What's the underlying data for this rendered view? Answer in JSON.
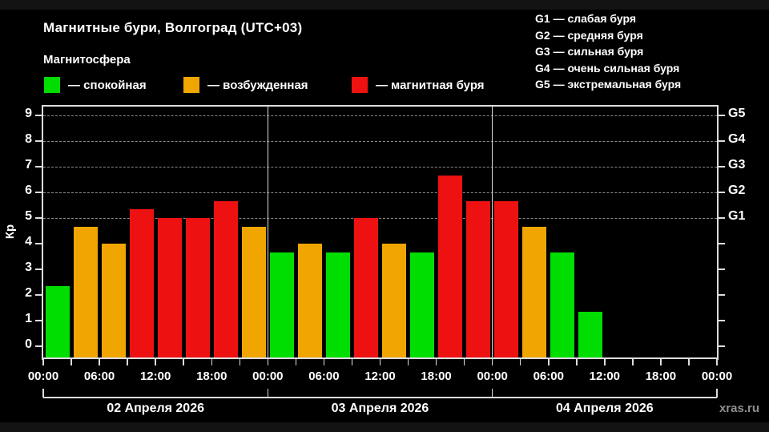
{
  "header": {
    "title": "Магнитные бури, Волгоград (UTC+03)",
    "subtitle": "Магнитосфера",
    "legend_items": [
      {
        "name": "quiet",
        "label": "— спокойная",
        "color": "#00dd00"
      },
      {
        "name": "excited",
        "label": "— возбужденная",
        "color": "#f0a500"
      },
      {
        "name": "storm",
        "label": "— магнитная буря",
        "color": "#ee1111"
      }
    ],
    "g_legend": [
      "G1 — слабая буря",
      "G2 — средняя буря",
      "G3 — сильная буря",
      "G4 — очень сильная буря",
      "G5 — экстремальная буря"
    ]
  },
  "chart_data": {
    "type": "bar",
    "title": "Магнитные бури, Волгоград (UTC+03)",
    "ylabel": "Кр",
    "ylim": [
      0,
      9
    ],
    "yticks": [
      0,
      1,
      2,
      3,
      4,
      5,
      6,
      7,
      8,
      9
    ],
    "grid_levels": [
      5,
      6,
      7,
      8,
      9
    ],
    "right_axis": [
      {
        "level": 5,
        "label": "G1"
      },
      {
        "level": 6,
        "label": "G2"
      },
      {
        "level": 7,
        "label": "G3"
      },
      {
        "level": 8,
        "label": "G4"
      },
      {
        "level": 9,
        "label": "G5"
      }
    ],
    "time_labels": [
      "00:00",
      "06:00",
      "12:00",
      "18:00",
      "00:00",
      "06:00",
      "12:00",
      "18:00",
      "00:00",
      "06:00",
      "12:00",
      "18:00",
      "00:00"
    ],
    "interval_hours": 3,
    "legend_position": "top",
    "grid": "dashed-at-storm-levels",
    "days": [
      {
        "date": "02 Апреля 2026",
        "values": [
          2.33,
          4.67,
          4.0,
          5.33,
          5.0,
          5.0,
          5.67,
          4.67
        ],
        "states": [
          "quiet",
          "excited",
          "excited",
          "storm",
          "storm",
          "storm",
          "storm",
          "excited"
        ]
      },
      {
        "date": "03 Апреля 2026",
        "values": [
          3.67,
          4.0,
          3.67,
          5.0,
          4.0,
          3.67,
          6.67,
          5.67
        ],
        "states": [
          "quiet",
          "excited",
          "quiet",
          "storm",
          "excited",
          "quiet",
          "storm",
          "storm"
        ]
      },
      {
        "date": "04 Апреля 2026",
        "values": [
          5.67,
          4.67,
          3.67,
          1.33,
          null,
          null,
          null,
          null
        ],
        "states": [
          "storm",
          "excited",
          "quiet",
          "quiet",
          null,
          null,
          null,
          null
        ]
      }
    ],
    "state_colors": {
      "quiet": "#00dd00",
      "excited": "#f0a500",
      "storm": "#ee1111"
    },
    "axis_color": "#dcdcdc",
    "gridline_color": "#8c8c8c"
  },
  "watermark": "xras.ru"
}
